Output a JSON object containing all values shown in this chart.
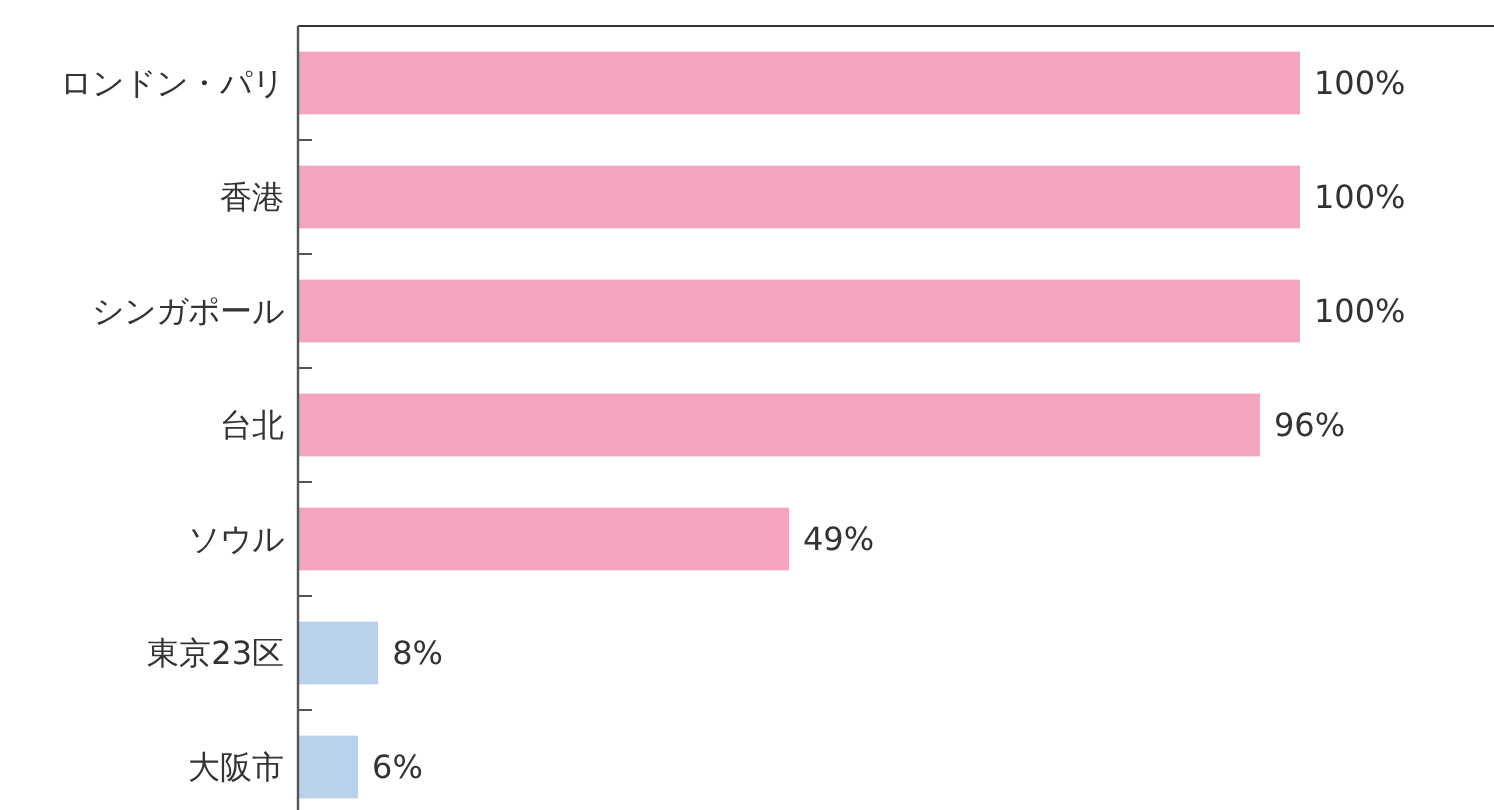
{
  "chart_data": {
    "type": "bar",
    "orientation": "horizontal",
    "relative": false,
    "categories": [
      "ロンドン・パリ",
      "香港",
      "シンガポール",
      "台北",
      "ソウル",
      "東京23区",
      "大阪市"
    ],
    "values": [
      100,
      100,
      100,
      96,
      49,
      8,
      6
    ],
    "colors": [
      "#f4a3c0",
      "#f4a3c0",
      "#f4a3c0",
      "#f4a3c0",
      "#f4a3c0",
      "#bad1ec",
      "#bad1ec"
    ],
    "value_labels": [
      "100%",
      "100%",
      "100%",
      "96%",
      "49%",
      "8%",
      "6%"
    ]
  }
}
